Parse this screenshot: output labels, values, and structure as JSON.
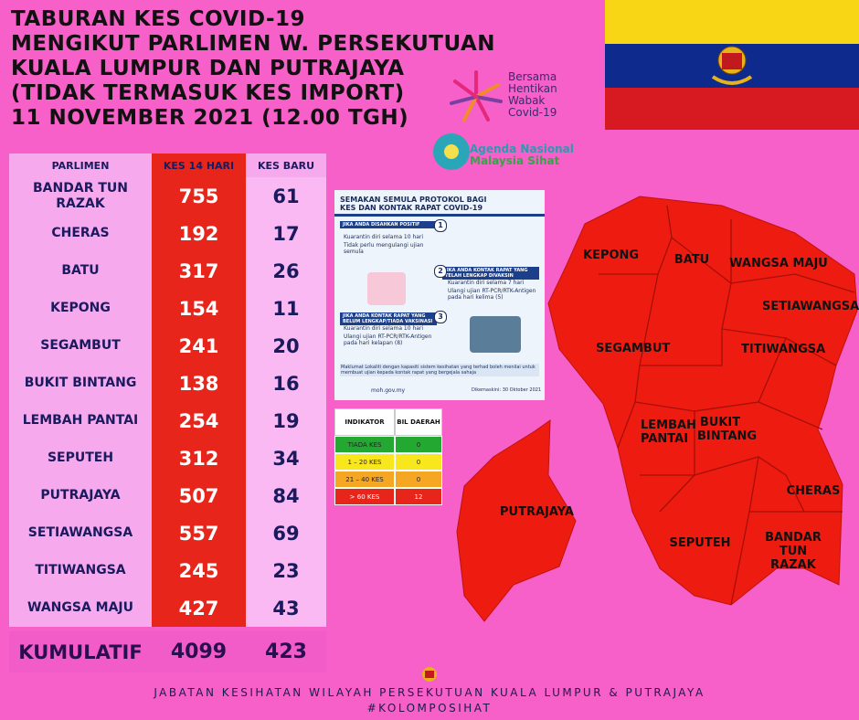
{
  "header": {
    "title_lines": [
      "TABURAN KES COVID-19",
      "MENGIKUT PARLIMEN W. PERSEKUTUAN",
      "KUALA LUMPUR DAN PUTRAJAYA",
      "(TIDAK TERMASUK KES IMPORT)",
      "11 NOVEMBER 2021 (12.00 TGH)"
    ]
  },
  "logos": {
    "campaign": [
      "Bersama",
      "Hentikan",
      "Wabak",
      "Covid-19"
    ],
    "agenda": [
      "Agenda Nasional",
      "Malaysia Sihat"
    ]
  },
  "table": {
    "columns": [
      "PARLIMEN",
      "KES 14 HARI",
      "KES BARU"
    ],
    "rows": [
      [
        "BANDAR TUN RAZAK",
        755,
        61
      ],
      [
        "CHERAS",
        192,
        17
      ],
      [
        "BATU",
        317,
        26
      ],
      [
        "KEPONG",
        154,
        11
      ],
      [
        "SEGAMBUT",
        241,
        20
      ],
      [
        "BUKIT BINTANG",
        138,
        16
      ],
      [
        "LEMBAH PANTAI",
        254,
        19
      ],
      [
        "SEPUTEH",
        312,
        34
      ],
      [
        "PUTRAJAYA",
        507,
        84
      ],
      [
        "SETIAWANGSA",
        557,
        69
      ],
      [
        "TITIWANGSA",
        245,
        23
      ],
      [
        "WANGSA MAJU",
        427,
        43
      ]
    ],
    "total": [
      "KUMULATIF",
      4099,
      423
    ]
  },
  "protocol": {
    "title": "SEMAKAN SEMULA PROTOKOL BAGI KES DAN KONTAK RAPAT COVID-19",
    "steps": [
      {
        "number": "1",
        "heading": "JIKA ANDA DISAHKAN POSITIF",
        "items": [
          "Kuarantin diri selama 10 hari",
          "Tidak perlu mengulangi ujian semula"
        ]
      },
      {
        "number": "2",
        "heading": "JIKA ANDA KONTAK RAPAT YANG TELAH LENGKAP DIVAKSIN",
        "items": [
          "Kuarantin diri selama 7 hari",
          "Ulangi ujian RT-PCR/RTK-Antigen pada hari kelima (5)"
        ]
      },
      {
        "number": "3",
        "heading": "JIKA ANDA KONTAK RAPAT YANG BELUM LENGKAP/TIADA VAKSINASI",
        "items": [
          "Kuarantin diri selama 10 hari",
          "Ulangi ujian RT-PCR/RTK-Antigen pada hari kelapan (8)"
        ]
      }
    ],
    "note": "Maklumat Lokaliti dengan kapasiti sistem kesihatan yang terhad boleh menilai untuk membuat ujian kepada kontak rapat yang bergejala sahaja",
    "website": "moh.gov.my",
    "updated": "Dikemaskini: 30 Oktober 2021"
  },
  "indicator": {
    "columns": [
      "INDIKATOR",
      "BIL DAERAH"
    ],
    "rows": [
      [
        "TIADA KES",
        0
      ],
      [
        "1 – 20 KES",
        0
      ],
      [
        "21 – 40 KES",
        0
      ],
      [
        "> 60 KES",
        12
      ]
    ]
  },
  "map": {
    "labels": [
      "KEPONG",
      "BATU",
      "WANGSA MAJU",
      "SETIAWANGSA",
      "SEGAMBUT",
      "TITIWANGSA",
      "LEMBAH PANTAI",
      "BUKIT BINTANG",
      "CHERAS",
      "BANDAR TUN RAZAK",
      "SEPUTEH",
      "PUTRAJAYA"
    ]
  },
  "footer": {
    "lines": [
      "JABATAN KESIHATAN WILAYAH PERSEKUTUAN KUALA LUMPUR & PUTRAJAYA",
      "#KOLOMPOSIHAT"
    ]
  }
}
